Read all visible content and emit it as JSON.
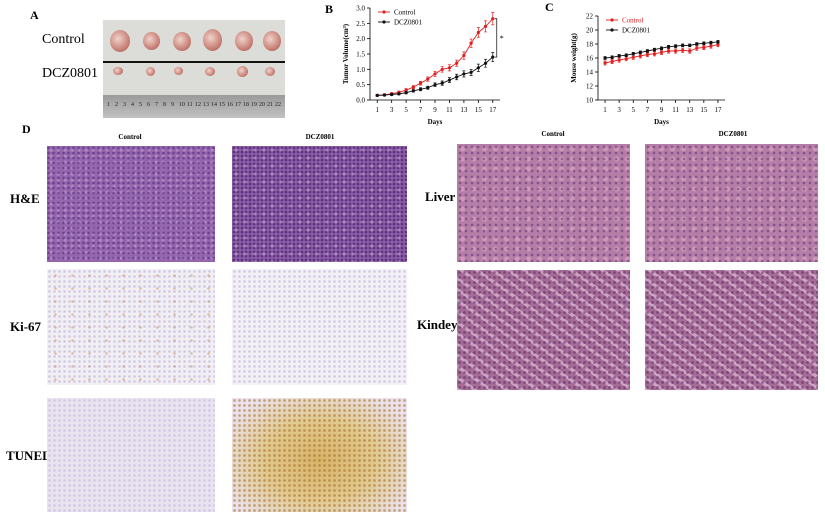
{
  "panel_labels": [
    "A",
    "B",
    "C",
    "D"
  ],
  "tumor_photo": {
    "row_labels": [
      "Control",
      "DCZ0801"
    ],
    "ruler_labels": [
      1,
      2,
      3,
      4,
      5,
      6,
      7,
      8,
      9,
      10,
      11,
      12,
      13,
      14,
      15,
      16,
      17,
      18,
      19,
      20,
      21,
      22
    ]
  },
  "histology": {
    "column_headers": [
      "Control",
      "DCZ0801"
    ],
    "row_labels": [
      "H&E",
      "Ki-67",
      "TUNEL"
    ]
  },
  "organs": {
    "column_headers": [
      "Control",
      "DCZ0801"
    ],
    "row_labels": [
      "Liver",
      "Kindey"
    ]
  },
  "chart_data": [
    {
      "type": "line",
      "x_label": "Days",
      "y_label": "Tumor Volume(cm³)",
      "x": [
        1,
        2,
        3,
        4,
        5,
        6,
        7,
        8,
        9,
        10,
        11,
        12,
        13,
        14,
        15,
        16,
        17
      ],
      "xlim": [
        0,
        18
      ],
      "xticks": [
        1,
        3,
        5,
        7,
        9,
        11,
        13,
        15,
        17
      ],
      "ylim": [
        0,
        3.0
      ],
      "yticks": [
        {
          "value": 0,
          "label": "0.0"
        },
        {
          "value": 0.5,
          "label": "0.5"
        },
        {
          "value": 1,
          "label": "1.0"
        },
        {
          "value": 1.5,
          "label": "1.5"
        },
        {
          "value": 2,
          "label": "2.0"
        },
        {
          "value": 2.5,
          "label": "2.5"
        },
        {
          "value": 3,
          "label": "3.0"
        }
      ],
      "annotation": "*",
      "series": [
        {
          "name": "Control",
          "color": "#e02020",
          "values": [
            0.15,
            0.17,
            0.2,
            0.25,
            0.32,
            0.42,
            0.55,
            0.68,
            0.85,
            1.0,
            1.05,
            1.2,
            1.45,
            1.85,
            2.2,
            2.4,
            2.65
          ],
          "errors": [
            0.03,
            0.03,
            0.04,
            0.04,
            0.05,
            0.05,
            0.06,
            0.07,
            0.08,
            0.09,
            0.1,
            0.1,
            0.12,
            0.14,
            0.16,
            0.18,
            0.2
          ]
        },
        {
          "name": "DCZ0801",
          "color": "#111111",
          "values": [
            0.15,
            0.16,
            0.18,
            0.2,
            0.24,
            0.3,
            0.35,
            0.4,
            0.5,
            0.55,
            0.65,
            0.75,
            0.85,
            0.9,
            1.05,
            1.2,
            1.4
          ],
          "errors": [
            0.02,
            0.02,
            0.03,
            0.03,
            0.04,
            0.04,
            0.05,
            0.05,
            0.06,
            0.07,
            0.08,
            0.09,
            0.1,
            0.1,
            0.12,
            0.13,
            0.15
          ]
        }
      ]
    },
    {
      "type": "line",
      "x_label": "Days",
      "y_label": "Mouse weight(g)",
      "x": [
        1,
        2,
        3,
        4,
        5,
        6,
        7,
        8,
        9,
        10,
        11,
        12,
        13,
        14,
        15,
        16,
        17
      ],
      "xlim": [
        0,
        18
      ],
      "xticks": [
        1,
        3,
        5,
        7,
        9,
        11,
        13,
        15,
        17
      ],
      "ylim": [
        10,
        22
      ],
      "yticks": [
        10,
        12,
        14,
        16,
        18,
        20,
        22
      ],
      "series": [
        {
          "name": "Control",
          "color": "#e02020",
          "values": [
            15.3,
            15.5,
            15.7,
            15.9,
            16.1,
            16.3,
            16.5,
            16.6,
            16.8,
            17.0,
            17.0,
            17.1,
            17.0,
            17.4,
            17.5,
            17.7,
            17.9
          ],
          "errors": [
            0.3,
            0.3,
            0.3,
            0.3,
            0.3,
            0.3,
            0.3,
            0.3,
            0.3,
            0.3,
            0.3,
            0.3,
            0.3,
            0.3,
            0.3,
            0.3,
            0.3
          ]
        },
        {
          "name": "DCZ0801",
          "color": "#111111",
          "values": [
            16.0,
            16.1,
            16.3,
            16.4,
            16.6,
            16.8,
            17.0,
            17.2,
            17.4,
            17.6,
            17.7,
            17.8,
            17.8,
            18.0,
            18.1,
            18.2,
            18.3
          ],
          "errors": [
            0.2,
            0.2,
            0.2,
            0.2,
            0.2,
            0.2,
            0.2,
            0.2,
            0.2,
            0.2,
            0.2,
            0.2,
            0.2,
            0.2,
            0.2,
            0.2,
            0.2
          ]
        }
      ]
    }
  ]
}
